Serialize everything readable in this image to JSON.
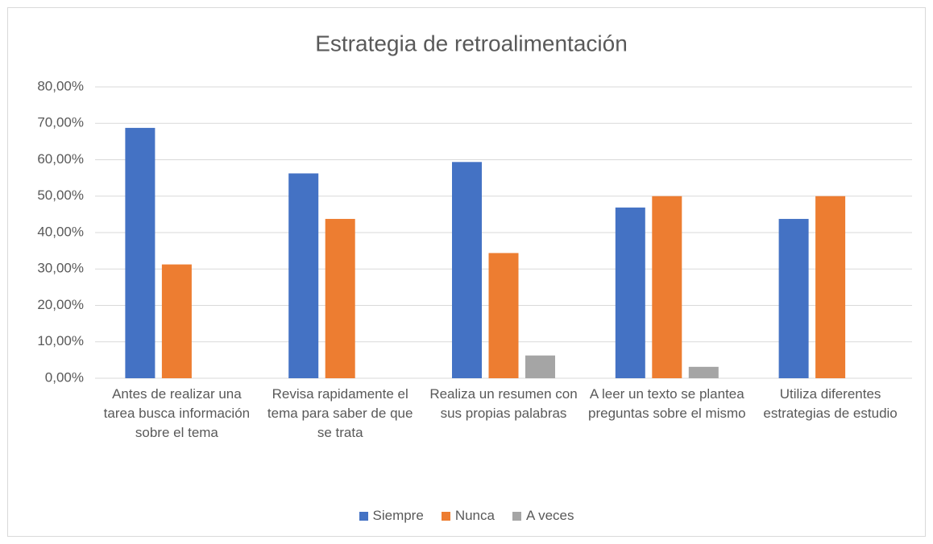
{
  "chart_data": {
    "type": "bar",
    "title": "Estrategia de retroalimentación",
    "categories": [
      "Antes de realizar una tarea busca información sobre el tema",
      "Revisa rapidamente el tema para saber de que se trata",
      "Realiza un resumen con sus propias palabras",
      "A leer un texto se plantea preguntas sobre el mismo",
      "Utiliza diferentes estrategias de estudio"
    ],
    "series": [
      {
        "name": "Siempre",
        "color": "#4472c4",
        "values": [
          68.75,
          56.25,
          59.38,
          46.88,
          43.75
        ]
      },
      {
        "name": "Nunca",
        "color": "#ed7d31",
        "values": [
          31.25,
          43.75,
          34.38,
          50,
          50
        ]
      },
      {
        "name": "A veces",
        "color": "#a5a5a5",
        "values": [
          0,
          0,
          6.25,
          3.13,
          0
        ]
      }
    ],
    "ylim": [
      0,
      80
    ],
    "yticks": [
      {
        "value": 0,
        "label": "0,00%"
      },
      {
        "value": 10,
        "label": "10,00%"
      },
      {
        "value": 20,
        "label": "20,00%"
      },
      {
        "value": 30,
        "label": "30,00%"
      },
      {
        "value": 40,
        "label": "40,00%"
      },
      {
        "value": 50,
        "label": "50,00%"
      },
      {
        "value": 60,
        "label": "60,00%"
      },
      {
        "value": 70,
        "label": "70,00%"
      },
      {
        "value": 80,
        "label": "80,00%"
      }
    ],
    "grid": true,
    "legend": "bottom"
  }
}
